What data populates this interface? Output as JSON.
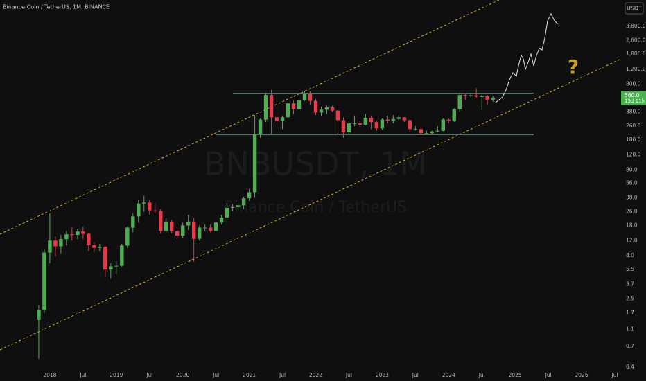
{
  "chart_data": {
    "type": "candlestick",
    "header": "Binance Coin / TetherUS, 1M, BINANCE",
    "watermark": "BNBUSDT, 1M",
    "watermark_sub": "Binance Coin / TetherUS",
    "currency": "USDT",
    "log_scale": true,
    "up_color": "#4caf50",
    "down_color": "#f23645",
    "x": [
      "2017-11",
      "2017-12",
      "2018-01",
      "2018-02",
      "2018-03",
      "2018-04",
      "2018-05",
      "2018-06",
      "2018-07",
      "2018-08",
      "2018-09",
      "2018-10",
      "2018-11",
      "2018-12",
      "2019-01",
      "2019-02",
      "2019-03",
      "2019-04",
      "2019-05",
      "2019-06",
      "2019-07",
      "2019-08",
      "2019-09",
      "2019-10",
      "2019-11",
      "2019-12",
      "2020-01",
      "2020-02",
      "2020-03",
      "2020-04",
      "2020-05",
      "2020-06",
      "2020-07",
      "2020-08",
      "2020-09",
      "2020-10",
      "2020-11",
      "2020-12",
      "2021-01",
      "2021-02",
      "2021-03",
      "2021-04",
      "2021-05",
      "2021-06",
      "2021-07",
      "2021-08",
      "2021-09",
      "2021-10",
      "2021-11",
      "2021-12",
      "2022-01",
      "2022-02",
      "2022-03",
      "2022-04",
      "2022-05",
      "2022-06",
      "2022-07",
      "2022-08",
      "2022-09",
      "2022-10",
      "2022-11",
      "2022-12",
      "2023-01",
      "2023-02",
      "2023-03",
      "2023-04",
      "2023-05",
      "2023-06",
      "2023-07",
      "2023-08",
      "2023-09",
      "2023-10",
      "2023-11",
      "2023-12",
      "2024-01",
      "2024-02",
      "2024-03",
      "2024-04",
      "2024-05",
      "2024-06",
      "2024-07",
      "2024-08",
      "2024-09"
    ],
    "open": [
      1.42,
      1.87,
      8.7,
      12.0,
      10.3,
      12.5,
      14.2,
      14.0,
      15.3,
      14.4,
      10.6,
      9.9,
      10.2,
      5.5,
      6.0,
      6.1,
      10.5,
      17.0,
      23.0,
      32.5,
      33.4,
      27.0,
      26.5,
      15.5,
      20.0,
      15.5,
      13.7,
      18.0,
      20.0,
      12.6,
      17.0,
      17.0,
      15.6,
      19.5,
      22.3,
      29.0,
      29.5,
      31.0,
      37.4,
      44.0,
      210,
      310,
      600,
      330,
      300,
      330,
      480,
      410,
      525,
      625,
      512,
      375,
      405,
      430,
      395,
      305,
      220,
      280,
      280,
      270,
      325,
      290,
      245,
      310,
      300,
      315,
      330,
      305,
      240,
      240,
      215,
      215,
      225,
      230,
      310,
      300,
      410,
      600,
      585,
      595,
      575,
      580,
      530
    ],
    "high": [
      2.1,
      9.5,
      25,
      13.5,
      14,
      15.5,
      17,
      16.5,
      17.5,
      14.8,
      11.5,
      11,
      10.5,
      6.5,
      6.9,
      11,
      17.5,
      25,
      36,
      40,
      36,
      33,
      28,
      22,
      21,
      16,
      19.5,
      24,
      22,
      18,
      18.5,
      18.5,
      20,
      24,
      33,
      32,
      33,
      39,
      48,
      350,
      320,
      640,
      690,
      440,
      340,
      510,
      520,
      560,
      670,
      660,
      540,
      440,
      450,
      450,
      400,
      330,
      300,
      340,
      300,
      360,
      340,
      300,
      320,
      345,
      350,
      350,
      330,
      310,
      260,
      250,
      230,
      230,
      260,
      320,
      320,
      420,
      640,
      630,
      620,
      720,
      610,
      600,
      590
    ],
    "low": [
      0.5,
      1.7,
      6.5,
      7.8,
      8.5,
      10.5,
      12,
      12.5,
      12.5,
      9,
      8.8,
      9,
      4.5,
      4.3,
      4.9,
      5.9,
      9.9,
      15,
      19.5,
      26,
      24,
      25,
      14.5,
      14.7,
      14.5,
      12.5,
      12.8,
      16,
      6.8,
      12,
      15.5,
      15,
      15.3,
      18.5,
      21,
      26.5,
      27,
      28,
      35,
      38,
      190,
      290,
      210,
      270,
      240,
      300,
      360,
      400,
      510,
      460,
      350,
      340,
      360,
      380,
      210,
      190,
      210,
      260,
      255,
      265,
      240,
      230,
      235,
      280,
      280,
      300,
      290,
      220,
      230,
      210,
      205,
      205,
      220,
      225,
      280,
      290,
      380,
      530,
      560,
      560,
      400,
      460,
      500
    ],
    "close": [
      1.87,
      8.7,
      12.0,
      10.3,
      12.5,
      14.2,
      14.0,
      15.3,
      14.4,
      10.6,
      9.9,
      10.2,
      5.5,
      6.0,
      6.1,
      10.5,
      17.0,
      23.0,
      32.5,
      33.4,
      27.0,
      26.5,
      15.5,
      20.0,
      15.5,
      13.7,
      18.0,
      20.0,
      12.6,
      17.0,
      17.0,
      15.6,
      19.5,
      22.3,
      29.0,
      29.5,
      31.0,
      37.4,
      44.0,
      210,
      310,
      600,
      330,
      300,
      330,
      480,
      410,
      525,
      625,
      512,
      375,
      405,
      430,
      395,
      305,
      220,
      280,
      280,
      270,
      325,
      290,
      245,
      310,
      300,
      315,
      330,
      305,
      240,
      240,
      215,
      215,
      225,
      230,
      310,
      300,
      410,
      600,
      585,
      595,
      575,
      580,
      530,
      560
    ],
    "xlim": [
      "2017-04",
      "2026-08"
    ],
    "xticks": [
      {
        "value": "2018-01",
        "label": "2018"
      },
      {
        "value": "2018-07",
        "label": "Jul"
      },
      {
        "value": "2019-01",
        "label": "2019"
      },
      {
        "value": "2019-07",
        "label": "Jul"
      },
      {
        "value": "2020-01",
        "label": "2020"
      },
      {
        "value": "2020-07",
        "label": "Jul"
      },
      {
        "value": "2021-01",
        "label": "2021"
      },
      {
        "value": "2021-07",
        "label": "Jul"
      },
      {
        "value": "2022-01",
        "label": "2022"
      },
      {
        "value": "2022-07",
        "label": "Jul"
      },
      {
        "value": "2023-01",
        "label": "2023"
      },
      {
        "value": "2023-07",
        "label": "Jul"
      },
      {
        "value": "2024-01",
        "label": "2024"
      },
      {
        "value": "2024-07",
        "label": "Jul"
      },
      {
        "value": "2025-01",
        "label": "2025"
      },
      {
        "value": "2025-07",
        "label": "Jul"
      },
      {
        "value": "2026-01",
        "label": "2026"
      },
      {
        "value": "2026-07",
        "label": "Jul"
      }
    ],
    "ylim": [
      0.385,
      7710
    ],
    "yticks": [
      0.4,
      0.7,
      1.1,
      1.7,
      2.5,
      3.7,
      5.5,
      {
        "value": 8,
        "label": "8.0"
      },
      {
        "value": 12,
        "label": "12.0"
      },
      {
        "value": 18,
        "label": "18.0"
      },
      {
        "value": 26,
        "label": "26.0"
      },
      {
        "value": 38,
        "label": "38.0"
      },
      {
        "value": 56,
        "label": "56.0"
      },
      {
        "value": 80,
        "label": "80.0"
      },
      {
        "value": 120,
        "label": "120.0"
      },
      {
        "value": 180,
        "label": "180.0"
      },
      {
        "value": 260,
        "label": "260.0"
      },
      {
        "value": 380,
        "label": "380.0"
      },
      {
        "value": 800,
        "label": "800.0"
      },
      {
        "value": 1200,
        "label": "1,200.0"
      },
      {
        "value": 1800,
        "label": "1,800.0"
      },
      {
        "value": 2600,
        "label": "2,600.0"
      },
      {
        "value": 3800,
        "label": "3,800.0"
      }
    ],
    "last_label": "560.0",
    "countdown": "15d 11h"
  }
}
